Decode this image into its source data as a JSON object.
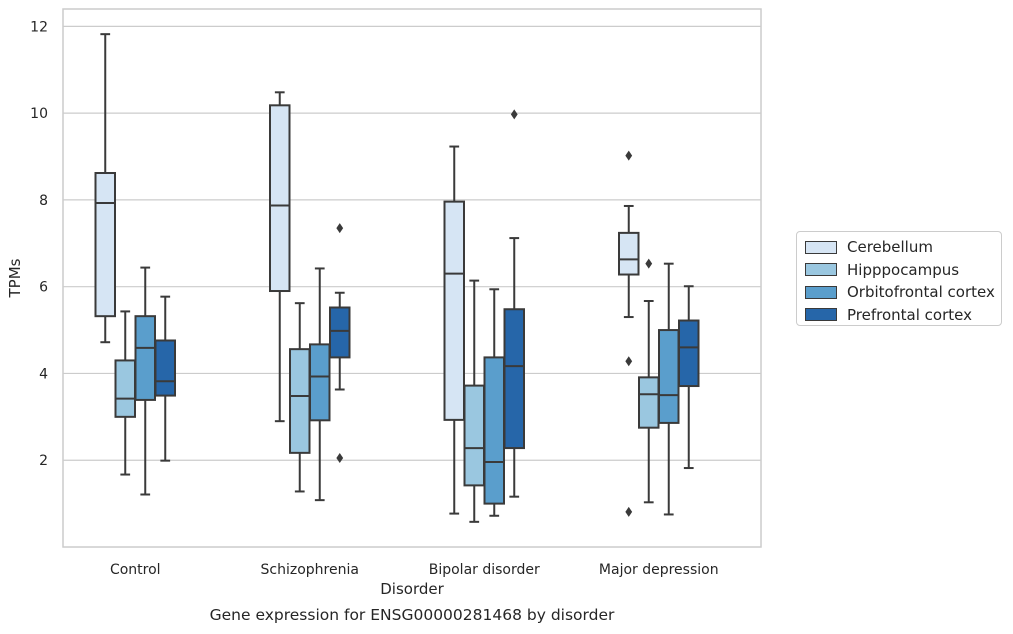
{
  "caption": "Gene expression for ENSG00000281468 by disorder",
  "chart_data": {
    "type": "box",
    "xlabel": "Disorder",
    "ylabel": "TPMs",
    "ylim": [
      0.0,
      12.4
    ],
    "yticks": [
      2,
      4,
      6,
      8,
      10,
      12
    ],
    "grid": "horizontal",
    "legend_position": "right",
    "categories": [
      "Control",
      "Schizophrenia",
      "Bipolar disorder",
      "Major depression"
    ],
    "series": [
      {
        "name": "Cerebellum",
        "color": "#d6e5f4",
        "boxes": [
          {
            "whislo": 4.72,
            "q1": 5.32,
            "med": 7.93,
            "q3": 8.62,
            "whishi": 11.82,
            "fliers": []
          },
          {
            "whislo": 2.9,
            "q1": 5.9,
            "med": 7.87,
            "q3": 10.18,
            "whishi": 10.48,
            "fliers": []
          },
          {
            "whislo": 0.77,
            "q1": 2.93,
            "med": 6.3,
            "q3": 7.96,
            "whishi": 9.23,
            "fliers": []
          },
          {
            "whislo": 5.3,
            "q1": 6.28,
            "med": 6.63,
            "q3": 7.24,
            "whishi": 7.86,
            "fliers": [
              9.02,
              4.28,
              0.81
            ]
          }
        ]
      },
      {
        "name": "Hipppocampus",
        "color": "#9ac7e0",
        "boxes": [
          {
            "whislo": 1.67,
            "q1": 3.0,
            "med": 3.42,
            "q3": 4.3,
            "whishi": 5.43,
            "fliers": []
          },
          {
            "whislo": 1.28,
            "q1": 2.17,
            "med": 3.48,
            "q3": 4.56,
            "whishi": 5.62,
            "fliers": []
          },
          {
            "whislo": 0.58,
            "q1": 1.42,
            "med": 2.28,
            "q3": 3.72,
            "whishi": 6.14,
            "fliers": []
          },
          {
            "whislo": 1.03,
            "q1": 2.75,
            "med": 3.52,
            "q3": 3.91,
            "whishi": 5.67,
            "fliers": [
              6.53
            ]
          }
        ]
      },
      {
        "name": "Orbitofrontal cortex",
        "color": "#5a9ecc",
        "boxes": [
          {
            "whislo": 1.21,
            "q1": 3.39,
            "med": 4.59,
            "q3": 5.32,
            "whishi": 6.44,
            "fliers": []
          },
          {
            "whislo": 1.08,
            "q1": 2.92,
            "med": 3.93,
            "q3": 4.67,
            "whishi": 6.42,
            "fliers": []
          },
          {
            "whislo": 0.72,
            "q1": 1.0,
            "med": 1.96,
            "q3": 4.37,
            "whishi": 5.94,
            "fliers": []
          },
          {
            "whislo": 0.75,
            "q1": 2.86,
            "med": 3.5,
            "q3": 5.0,
            "whishi": 6.53,
            "fliers": []
          }
        ]
      },
      {
        "name": "Prefrontal cortex",
        "color": "#2666a9",
        "boxes": [
          {
            "whislo": 1.99,
            "q1": 3.49,
            "med": 3.82,
            "q3": 4.76,
            "whishi": 5.77,
            "fliers": []
          },
          {
            "whislo": 3.63,
            "q1": 4.37,
            "med": 4.98,
            "q3": 5.52,
            "whishi": 5.86,
            "fliers": [
              7.35,
              2.05
            ]
          },
          {
            "whislo": 1.16,
            "q1": 2.28,
            "med": 4.17,
            "q3": 5.48,
            "whishi": 7.12,
            "fliers": [
              9.97
            ]
          },
          {
            "whislo": 1.82,
            "q1": 3.71,
            "med": 4.6,
            "q3": 5.22,
            "whishi": 6.01,
            "fliers": []
          }
        ]
      }
    ]
  }
}
